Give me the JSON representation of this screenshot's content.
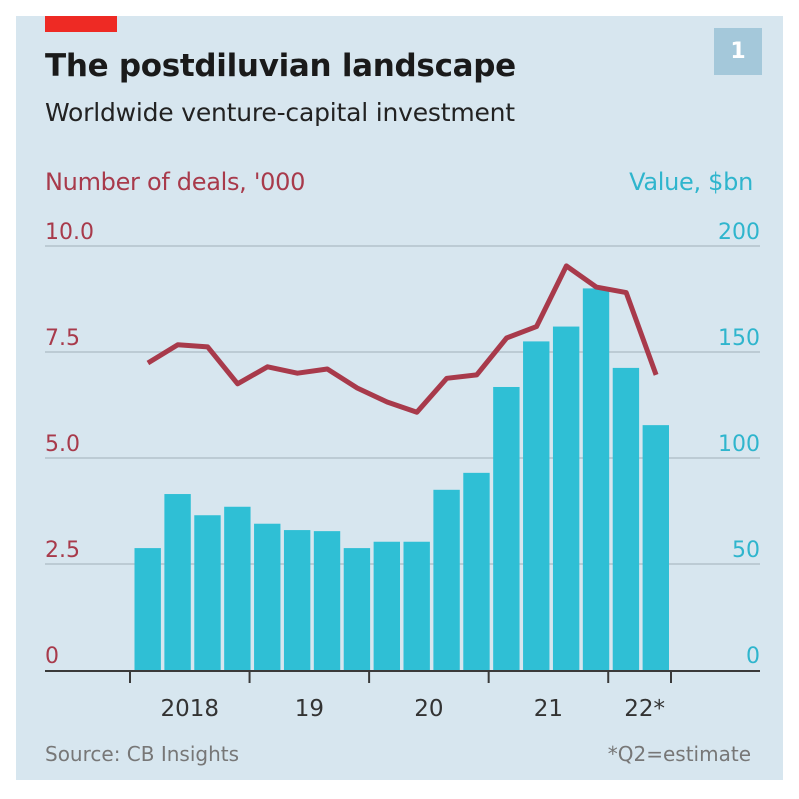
{
  "header": {
    "title": "The postdiluvian landscape",
    "subtitle": "Worldwide venture-capital investment",
    "chart_number": "1"
  },
  "footer": {
    "source": "Source: CB Insights",
    "footnote": "*Q2=estimate"
  },
  "colors": {
    "background": "#d7e6ef",
    "accent_red": "#ee2a24",
    "deals_line": "#a83a4b",
    "value_bars": "#2fbfd5"
  },
  "chart_data": {
    "type": "bar+line",
    "title": "The postdiluvian landscape",
    "subtitle": "Worldwide venture-capital investment",
    "x_ticks": [
      "2018",
      "19",
      "20",
      "21",
      "22*"
    ],
    "categories": [
      "2018Q1",
      "2018Q2",
      "2018Q3",
      "2018Q4",
      "2019Q1",
      "2019Q2",
      "2019Q3",
      "2019Q4",
      "2020Q1",
      "2020Q2",
      "2020Q3",
      "2020Q4",
      "2021Q1",
      "2021Q2",
      "2021Q3",
      "2021Q4",
      "2022Q1",
      "2022Q2*"
    ],
    "series": [
      {
        "name": "Value, $bn",
        "type": "bar",
        "axis": "right",
        "values": [
          57.5,
          83,
          73,
          77,
          69,
          66,
          65.5,
          57.5,
          60.5,
          60.5,
          85,
          93,
          133.5,
          155,
          162,
          180,
          142.5,
          115.5
        ]
      },
      {
        "name": "Number of deals, '000",
        "type": "line",
        "axis": "left",
        "values": [
          7.24,
          7.67,
          7.62,
          6.75,
          7.15,
          7.0,
          7.1,
          6.65,
          6.32,
          6.08,
          6.88,
          6.96,
          7.83,
          8.1,
          9.53,
          9.03,
          8.9,
          6.96
        ]
      }
    ],
    "left_axis": {
      "label": "Number of deals, '000",
      "range": [
        0,
        10
      ],
      "ticks": [
        "0",
        "2.5",
        "5.0",
        "7.5",
        "10.0"
      ],
      "tick_values": [
        0,
        2.5,
        5,
        7.5,
        10
      ]
    },
    "right_axis": {
      "label": "Value, $bn",
      "range": [
        0,
        200
      ],
      "ticks": [
        "0",
        "50",
        "100",
        "150",
        "200"
      ],
      "tick_values": [
        0,
        50,
        100,
        150,
        200
      ]
    },
    "grid": true,
    "legend": "axis-titles"
  }
}
